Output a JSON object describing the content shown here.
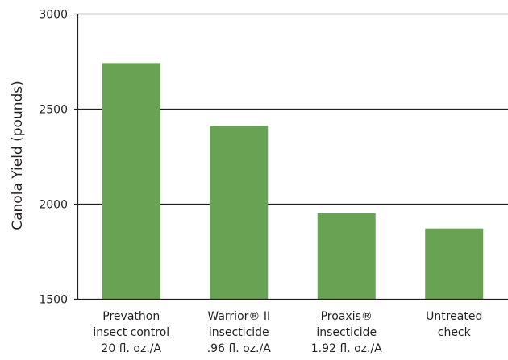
{
  "chart_data": {
    "type": "bar",
    "title": "",
    "xlabel": "",
    "ylabel": "Canola Yield (pounds)",
    "ylim": [
      1500,
      3000
    ],
    "yticks": [
      1500,
      2000,
      2500,
      3000
    ],
    "grid": true,
    "bar_color": "#67a352",
    "categories": [
      [
        "Prevathon",
        "insect control",
        "20 fl. oz./A"
      ],
      [
        "Warrior® II",
        "insecticide",
        ".96 fl. oz./A"
      ],
      [
        "Proaxis®",
        "insecticide",
        "1.92 fl. oz./A"
      ],
      [
        "Untreated",
        "check"
      ]
    ],
    "values": [
      2740,
      2410,
      1950,
      1870
    ]
  }
}
